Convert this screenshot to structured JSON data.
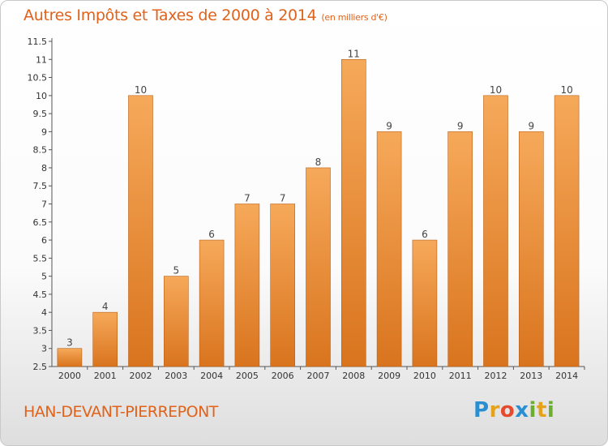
{
  "header": {
    "title": "Autres Impôts et Taxes de 2000 à 2014",
    "unit": "(en milliers d'€)"
  },
  "footer": {
    "commune": "HAN-DEVANT-PIERREPONT",
    "logo_letters": [
      "P",
      "r",
      "o",
      "x",
      "i",
      "t",
      "i"
    ],
    "logo_colors": [
      "#2a8fd0",
      "#e6a319",
      "#e64a2e",
      "#2a8fd0",
      "#6cae2e",
      "#e6a319",
      "#6cae2e"
    ]
  },
  "colors": {
    "bar_top": "#f6a95a",
    "bar_bottom": "#d9741e",
    "bar_edge": "#b95f16",
    "text_accent": "#e0621b"
  },
  "chart_data": {
    "type": "bar",
    "title": "Autres Impôts et Taxes de 2000 à 2014",
    "subtitle": "(en milliers d'€)",
    "categories": [
      "2000",
      "2001",
      "2002",
      "2003",
      "2004",
      "2005",
      "2006",
      "2007",
      "2008",
      "2009",
      "2010",
      "2011",
      "2012",
      "2013",
      "2014"
    ],
    "values": [
      3,
      4,
      10,
      5,
      6,
      7,
      7,
      8,
      11,
      9,
      6,
      9,
      10,
      9,
      10
    ],
    "ylim": [
      2.5,
      11.5
    ],
    "yticks": [
      "2.5",
      "3",
      "3.5",
      "4",
      "4.5",
      "5",
      "5.5",
      "6",
      "6.5",
      "7",
      "7.5",
      "8",
      "8.5",
      "9",
      "9.5",
      "10",
      "10.5",
      "11",
      "11.5"
    ],
    "xlabel": "",
    "ylabel": "",
    "grid": false
  }
}
